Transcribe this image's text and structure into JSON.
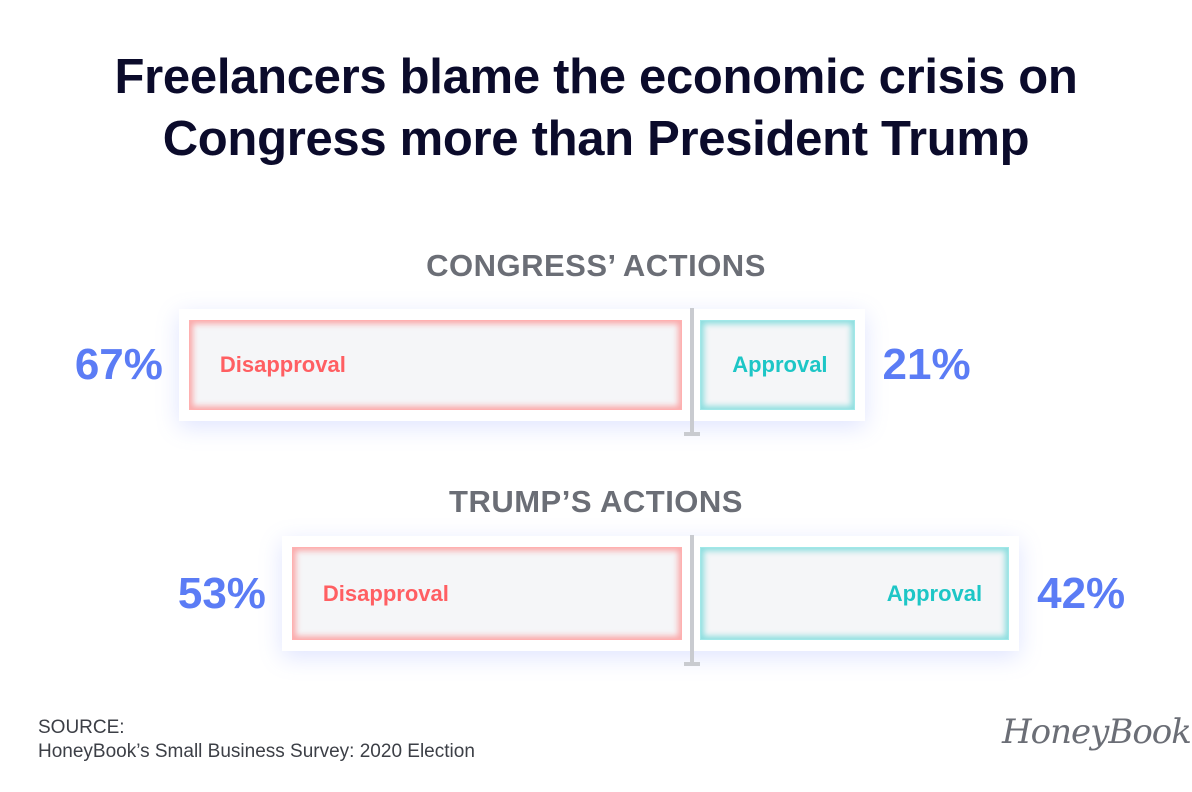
{
  "chart_data": {
    "type": "bar",
    "orientation": "horizontal-diverging",
    "title": "Freelancers blame the economic crisis on Congress more than President Trump",
    "groups": [
      {
        "title": "CONGRESS’ ACTIONS",
        "disapproval": 67,
        "approval": 21,
        "disapproval_label": "67%",
        "approval_label": "21%"
      },
      {
        "title": "TRUMP’S ACTIONS",
        "disapproval": 53,
        "approval": 42,
        "disapproval_label": "53%",
        "approval_label": "42%"
      }
    ],
    "series": [
      {
        "name": "Disapproval",
        "color": "#ff5f62"
      },
      {
        "name": "Approval",
        "color": "#1dc6c6"
      }
    ],
    "value_color": "#5b7cf5"
  },
  "source": {
    "line1": "SOURCE:",
    "line2": "HoneyBook’s Small Business Survey: 2020 Election"
  },
  "logo": "HoneyBook"
}
